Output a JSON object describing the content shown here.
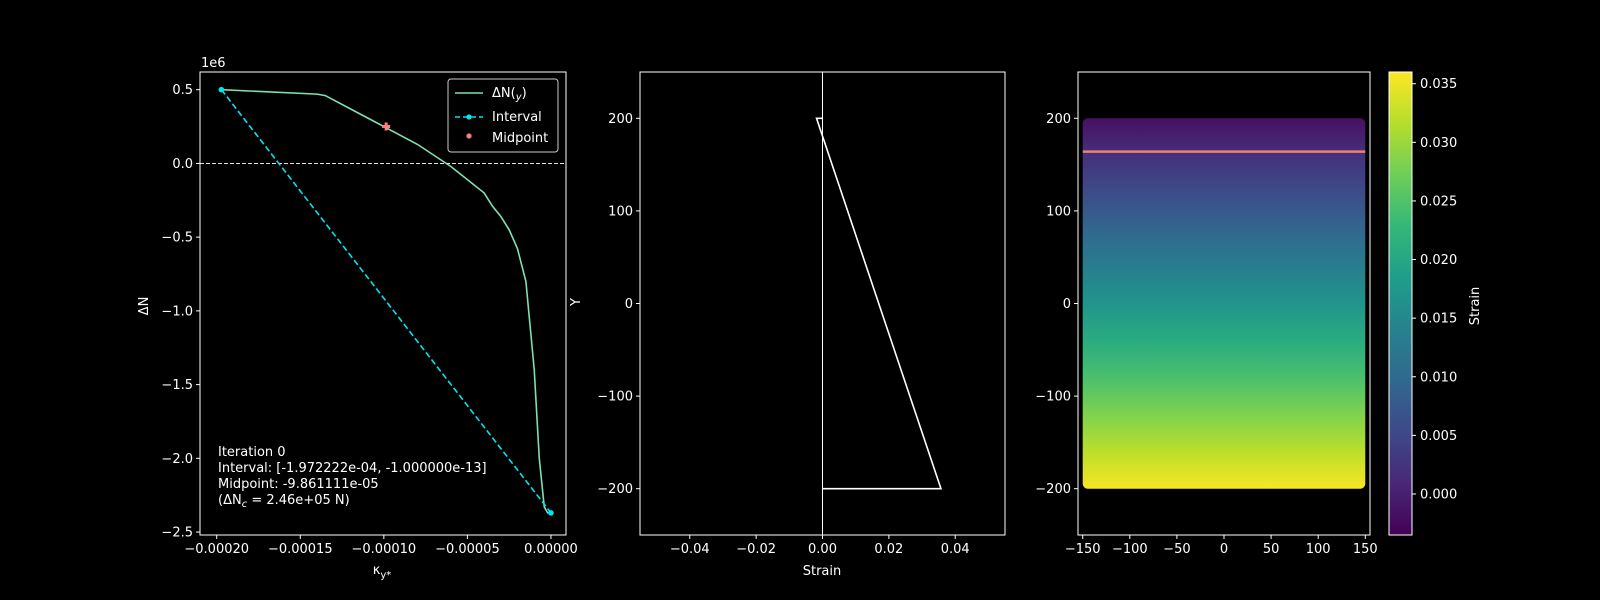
{
  "chart_data": [
    {
      "type": "line",
      "xlabel": "κ_{y*}",
      "ylabel": "ΔN",
      "offset_text": "1e6",
      "xlim": [
        -0.00021,
        9e-06
      ],
      "ylim": [
        -2.52,
        0.62
      ],
      "xticks": [
        -0.0002,
        -0.00015,
        -0.0001,
        -5e-05,
        0.0
      ],
      "xtick_labels": [
        "−0.00020",
        "−0.00015",
        "−0.00010",
        "−0.00005",
        "0.00000"
      ],
      "yticks": [
        0.5,
        0.0,
        -0.5,
        -1.0,
        -1.5,
        -2.0,
        -2.5
      ],
      "ytick_labels": [
        "0.5",
        "0.0",
        "−0.5",
        "−1.0",
        "−1.5",
        "−2.0",
        "−2.5"
      ],
      "zero_line": 0.0,
      "series": [
        {
          "name": "ΔN(y)",
          "style": "solid",
          "color": "#7fe0b0",
          "x": [
            -0.0001972,
            -0.00014,
            -0.000135,
            -0.00012,
            -0.0001,
            -8e-05,
            -6e-05,
            -4e-05,
            -3.5e-05,
            -3e-05,
            -2.5e-05,
            -2e-05,
            -1.5e-05,
            -1e-05,
            -7e-06,
            -4e-06,
            -2e-06,
            0.0
          ],
          "y": [
            0.5,
            0.47,
            0.46,
            0.37,
            0.25,
            0.13,
            -0.02,
            -0.2,
            -0.29,
            -0.36,
            -0.45,
            -0.58,
            -0.8,
            -1.4,
            -2.0,
            -2.33,
            -2.37,
            -2.37
          ]
        },
        {
          "name": "Interval",
          "style": "dashed",
          "color": "#00e5ee",
          "x": [
            -0.0001972,
            0.0
          ],
          "y": [
            0.5,
            -2.37
          ]
        },
        {
          "name": "Midpoint",
          "style": "marker",
          "color": "#ff7f7f",
          "x": [
            -9.861e-05
          ],
          "y": [
            0.25
          ]
        }
      ],
      "legend": "top-right",
      "annotation": {
        "line1": "Iteration 0",
        "line2": "Interval: [-1.972222e-04, -1.000000e-13]",
        "line3": "Midpoint: -9.861111e-05",
        "line4_pre": "(ΔN",
        "line4_sub": "c",
        "line4_post": " = 2.46e+05 N)"
      }
    },
    {
      "type": "line",
      "xlabel": "Strain",
      "ylabel": "Y",
      "xlim": [
        -0.055,
        0.055
      ],
      "ylim": [
        -250,
        250
      ],
      "xticks": [
        -0.04,
        -0.02,
        0.0,
        0.02,
        0.04
      ],
      "xtick_labels": [
        "−0.04",
        "−0.02",
        "0.00",
        "0.02",
        "0.04"
      ],
      "yticks": [
        200,
        100,
        0,
        -100,
        -200
      ],
      "ytick_labels": [
        "200",
        "100",
        "0",
        "−100",
        "−200"
      ],
      "vertical_line": 0.0,
      "series": [
        {
          "style": "solid",
          "color": "#ffffff",
          "x": [
            0.0,
            -0.0018,
            0.0357,
            0.0
          ],
          "y": [
            200,
            200,
            -200,
            -200
          ]
        }
      ]
    },
    {
      "type": "heatmap",
      "ylabel": "",
      "xlim": [
        -155,
        155
      ],
      "ylim": [
        -250,
        250
      ],
      "xticks": [
        -150,
        -100,
        -50,
        0,
        50,
        100,
        150
      ],
      "xtick_labels": [
        "−150",
        "−100",
        "−50",
        "0",
        "50",
        "100",
        "150"
      ],
      "yticks": [
        200,
        100,
        0,
        -100,
        -200
      ],
      "ytick_labels": [
        "200",
        "100",
        "0",
        "−100",
        "−200"
      ],
      "section": {
        "x": [
          -150,
          150
        ],
        "y": [
          -200,
          200
        ]
      },
      "strain_at_top": -0.0018,
      "strain_at_bottom": 0.0357,
      "neutral_line_y": 164,
      "neutral_line_color": "#f08070",
      "colorbar": {
        "label": "Strain",
        "min": -0.0035,
        "max": 0.036,
        "ticks": [
          0.0,
          0.005,
          0.01,
          0.015,
          0.02,
          0.025,
          0.03,
          0.035
        ],
        "tick_labels": [
          "0.000",
          "0.005",
          "0.010",
          "0.015",
          "0.020",
          "0.025",
          "0.030",
          "0.035"
        ],
        "colors": [
          "#440154",
          "#482878",
          "#3e4989",
          "#31688e",
          "#26828e",
          "#1f9e89",
          "#35b779",
          "#6ece58",
          "#b5de2b",
          "#fde725"
        ]
      }
    }
  ]
}
